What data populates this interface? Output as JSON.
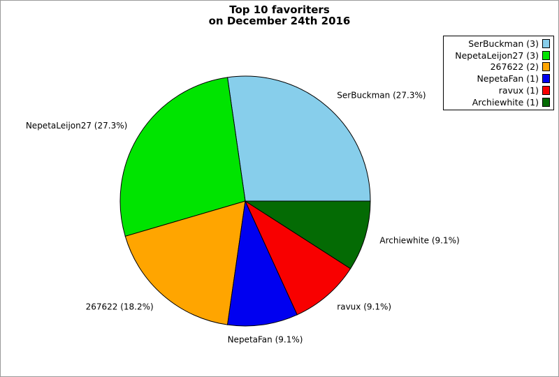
{
  "figure": {
    "title_line1": "Top 10 favoriters",
    "title_line2": "on December 24th 2016"
  },
  "chart_data": {
    "type": "pie",
    "title": "Top 10 favoriters on December 24th 2016",
    "start_angle_deg": 0,
    "direction": "counterclockwise",
    "legend_position": "upper right",
    "slices": [
      {
        "label": "SerBuckman",
        "count": 3,
        "percent": 27.3,
        "color": "#87CEEB",
        "legend_label": "SerBuckman (3)",
        "slice_label": "SerBuckman (27.3%)"
      },
      {
        "label": "NepetaLeijon27",
        "count": 3,
        "percent": 27.3,
        "color": "#00E400",
        "legend_label": "NepetaLeijon27 (3)",
        "slice_label": "NepetaLeijon27 (27.3%)"
      },
      {
        "label": "267622",
        "count": 2,
        "percent": 18.2,
        "color": "#FFA500",
        "legend_label": "267622 (2)",
        "slice_label": "267622 (18.2%)"
      },
      {
        "label": "NepetaFan",
        "count": 1,
        "percent": 9.1,
        "color": "#0000F0",
        "legend_label": "NepetaFan (1)",
        "slice_label": "NepetaFan (9.1%)"
      },
      {
        "label": "ravux",
        "count": 1,
        "percent": 9.1,
        "color": "#F80000",
        "legend_label": "ravux (1)",
        "slice_label": "ravux (9.1%)"
      },
      {
        "label": "Archiewhite",
        "count": 1,
        "percent": 9.1,
        "color": "#046B04",
        "legend_label": "Archiewhite (1)",
        "slice_label": "Archiewhite (9.1%)"
      }
    ]
  }
}
